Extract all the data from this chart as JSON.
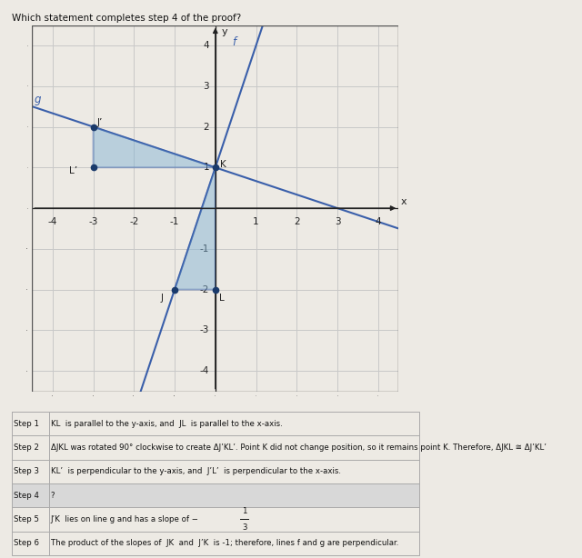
{
  "title": "Which statement completes step 4 of the proof?",
  "xlim": [
    -4.5,
    4.5
  ],
  "ylim": [
    -4.5,
    4.5
  ],
  "xticks": [
    -4,
    -3,
    -2,
    -1,
    0,
    1,
    2,
    3,
    4
  ],
  "yticks": [
    -4,
    -3,
    -2,
    -1,
    0,
    1,
    2,
    3,
    4
  ],
  "K": [
    0,
    1
  ],
  "J": [
    -1,
    -2
  ],
  "L": [
    0,
    -2
  ],
  "Jp": [
    -3,
    2
  ],
  "Lp": [
    -3,
    1
  ],
  "triangle_color": "#7bafd4",
  "triangle_alpha": 0.45,
  "point_color": "#1a3a6b",
  "line_color": "#3a5faa",
  "line_f_slope": 3,
  "line_g_slope": -0.3333333,
  "bg_color": "#edeae4",
  "grid_color": "#c8c8c8",
  "axis_color": "#222222",
  "table_rows": [
    [
      "Step 1",
      "KL  is parallel to the y-axis, and  JL  is parallel to the x-axis."
    ],
    [
      "Step 2",
      "ΔJKL was rotated 90° clockwise to create ΔJ’KL’. Point K did not change position, so it remains point K. Therefore, ΔJKL ≅ ΔJ’KL’"
    ],
    [
      "Step 3",
      "KL’  is perpendicular to the y-axis, and  J’L’  is perpendicular to the x-axis."
    ],
    [
      "Step 4",
      "?"
    ],
    [
      "Step 5",
      "J’K  lies on line g and has a slope of −"
    ],
    [
      "Step 6",
      "The product of the slopes of  JK  and  J’K  is -1; therefore, lines f and g are perpendicular."
    ]
  ],
  "step4_highlight": "#d8d8d8",
  "lc": "#aaaaaa"
}
